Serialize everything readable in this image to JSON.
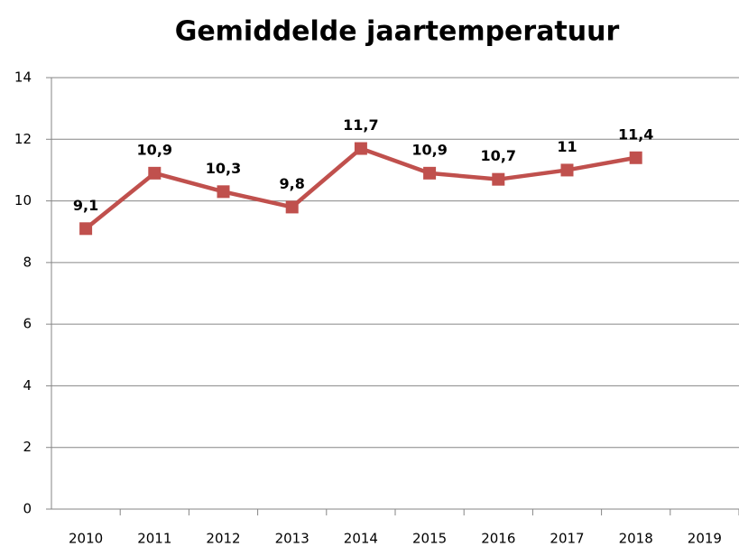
{
  "chart_data": {
    "type": "line",
    "title": "Gemiddelde jaartemperatuur",
    "categories": [
      "2010",
      "2011",
      "2012",
      "2013",
      "2014",
      "2015",
      "2016",
      "2017",
      "2018",
      "2019"
    ],
    "series": [
      {
        "name": "Gemiddelde jaartemperatuur",
        "color": "#c0504d",
        "values": [
          9.1,
          10.9,
          10.3,
          9.8,
          11.7,
          10.9,
          10.7,
          11,
          11.4,
          null
        ],
        "value_labels": [
          "9,1",
          "10,9",
          "10,3",
          "9,8",
          "11,7",
          "10,9",
          "10,7",
          "11",
          "11,4",
          null
        ]
      }
    ],
    "ylim": [
      0,
      14
    ],
    "yticks": [
      0,
      2,
      4,
      6,
      8,
      10,
      12,
      14
    ],
    "grid": true,
    "legend": false
  }
}
